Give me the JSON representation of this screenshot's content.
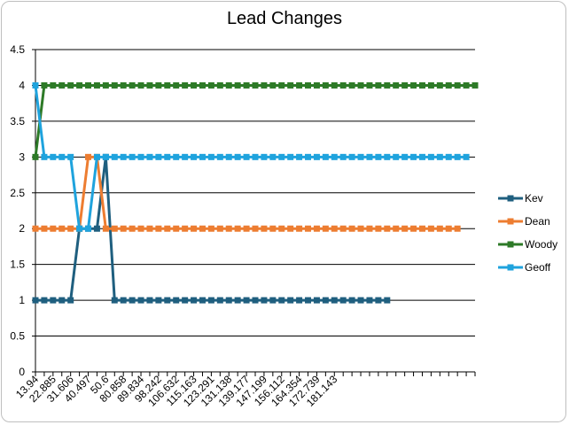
{
  "chart_data": {
    "type": "line",
    "title": "Lead Changes",
    "xlabel": "",
    "ylabel": "",
    "ylim": [
      0,
      4.5
    ],
    "y_ticks": [
      "0",
      "0.5",
      "1",
      "1.5",
      "2",
      "2.5",
      "3",
      "3.5",
      "4",
      "4.5"
    ],
    "x_tick_labels": [
      "13.94",
      "22.885",
      "31.606",
      "40.497",
      "50.6",
      "80.858",
      "89.834",
      "98.242",
      "106.632",
      "115.163",
      "123.291",
      "131.138",
      "139.177",
      "147.199",
      "156.112",
      "164.354",
      "172.739",
      "181.143"
    ],
    "grid": true,
    "legend_position": "right",
    "series": [
      {
        "name": "Kev",
        "color": "#1f5f7f",
        "values": [
          1,
          1,
          1,
          1,
          1,
          2,
          2,
          2,
          3,
          1,
          1,
          1,
          1,
          1,
          1,
          1,
          1,
          1,
          1,
          1,
          1,
          1,
          1,
          1,
          1,
          1,
          1,
          1,
          1,
          1,
          1,
          1,
          1,
          1,
          1,
          1,
          1,
          1,
          1,
          1,
          1
        ]
      },
      {
        "name": "Dean",
        "color": "#ed7d31",
        "values": [
          2,
          2,
          2,
          2,
          2,
          2,
          3,
          3,
          2,
          2,
          2,
          2,
          2,
          2,
          2,
          2,
          2,
          2,
          2,
          2,
          2,
          2,
          2,
          2,
          2,
          2,
          2,
          2,
          2,
          2,
          2,
          2,
          2,
          2,
          2,
          2,
          2,
          2,
          2,
          2,
          2,
          2,
          2,
          2,
          2,
          2,
          2,
          2,
          2
        ]
      },
      {
        "name": "Woody",
        "color": "#2d7a27",
        "values": [
          3,
          4,
          4,
          4,
          4,
          4,
          4,
          4,
          4,
          4,
          4,
          4,
          4,
          4,
          4,
          4,
          4,
          4,
          4,
          4,
          4,
          4,
          4,
          4,
          4,
          4,
          4,
          4,
          4,
          4,
          4,
          4,
          4,
          4,
          4,
          4,
          4,
          4,
          4,
          4,
          4,
          4,
          4,
          4,
          4,
          4,
          4,
          4,
          4,
          4,
          4
        ]
      },
      {
        "name": "Geoff",
        "color": "#1fa3dd",
        "values": [
          4,
          3,
          3,
          3,
          3,
          2,
          2,
          3,
          3,
          3,
          3,
          3,
          3,
          3,
          3,
          3,
          3,
          3,
          3,
          3,
          3,
          3,
          3,
          3,
          3,
          3,
          3,
          3,
          3,
          3,
          3,
          3,
          3,
          3,
          3,
          3,
          3,
          3,
          3,
          3,
          3,
          3,
          3,
          3,
          3,
          3,
          3,
          3,
          3,
          3
        ]
      }
    ]
  }
}
